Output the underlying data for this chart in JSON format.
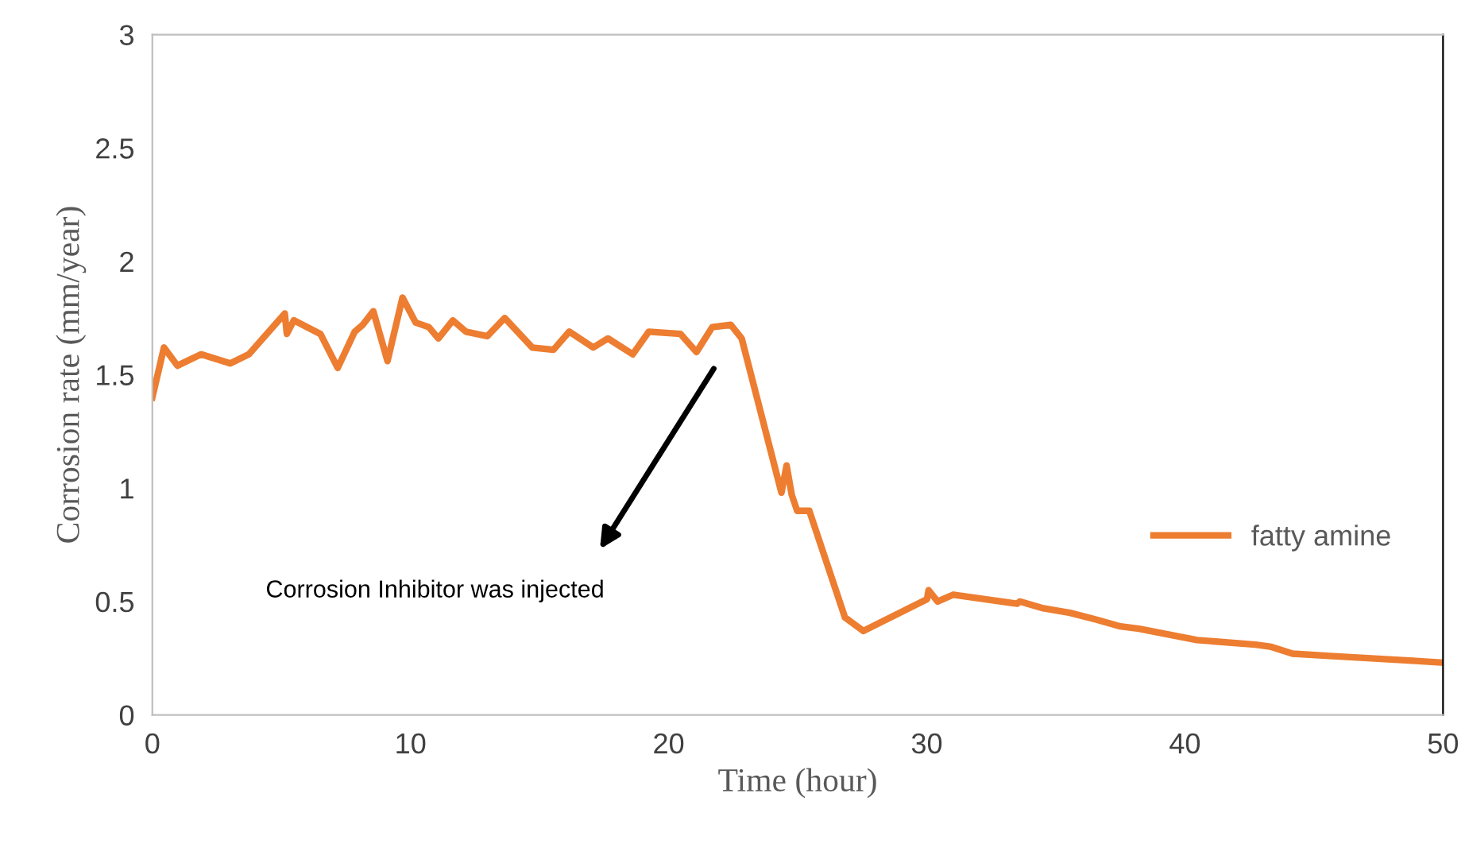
{
  "chart_data": {
    "type": "line",
    "xlabel": "Time (hour)",
    "ylabel": "Corrosion rate (mm/year)",
    "xlim": [
      0,
      50
    ],
    "xticks": [
      0,
      10,
      20,
      30,
      40,
      50
    ],
    "ylim": [
      0,
      3
    ],
    "yticks": [
      0,
      0.5,
      1,
      1.5,
      2,
      2.5,
      3
    ],
    "grid": false,
    "legend": "right",
    "marker": "none",
    "line_style": "solid",
    "annotations": [
      "Corrosion Inhibitor was injected"
    ],
    "series": [
      {
        "name": "fatty amine",
        "color": "#ed7d31",
        "x": [
          0,
          0.45,
          0.97,
          1.89,
          3.02,
          3.74,
          5.13,
          5.21,
          5.48,
          6.51,
          7.18,
          7.84,
          8.15,
          8.56,
          9.11,
          9.69,
          10.2,
          10.71,
          11.08,
          11.64,
          12.15,
          12.97,
          13.65,
          14.72,
          15.54,
          16.15,
          17.08,
          17.65,
          18.61,
          19.23,
          20.46,
          21.08,
          21.69,
          22.41,
          22.83,
          24.37,
          24.57,
          24.77,
          24.98,
          25.45,
          26.83,
          27.54,
          30.01,
          30.07,
          30.42,
          31.03,
          33.5,
          33.6,
          34.52,
          35.55,
          36.58,
          37.5,
          38.22,
          40.47,
          42.73,
          43.35,
          44.17,
          45.61,
          48.69,
          50
        ],
        "values": [
          1.4,
          1.62,
          1.54,
          1.59,
          1.55,
          1.59,
          1.77,
          1.68,
          1.74,
          1.68,
          1.53,
          1.69,
          1.72,
          1.78,
          1.56,
          1.84,
          1.73,
          1.71,
          1.66,
          1.74,
          1.69,
          1.67,
          1.75,
          1.62,
          1.61,
          1.69,
          1.62,
          1.66,
          1.59,
          1.69,
          1.68,
          1.6,
          1.71,
          1.72,
          1.66,
          0.98,
          1.1,
          0.97,
          0.9,
          0.9,
          0.43,
          0.37,
          0.51,
          0.55,
          0.5,
          0.53,
          0.49,
          0.5,
          0.47,
          0.45,
          0.42,
          0.39,
          0.38,
          0.33,
          0.31,
          0.3,
          0.27,
          0.26,
          0.24,
          0.23
        ]
      }
    ]
  }
}
